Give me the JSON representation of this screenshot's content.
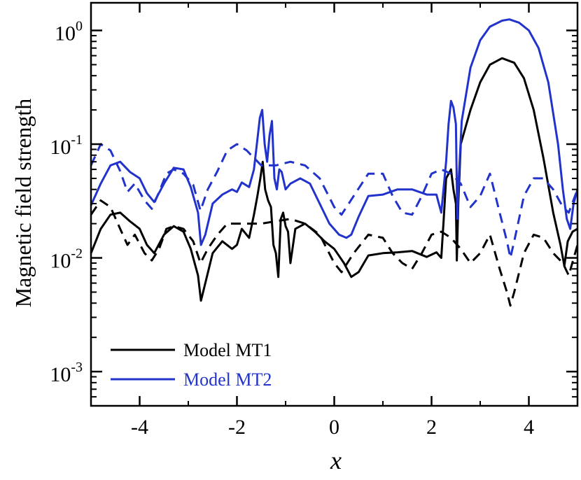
{
  "chart_data": {
    "type": "line",
    "title": "",
    "xlabel": "x",
    "ylabel": "Magnetic field strength",
    "xlim": [
      -5,
      5
    ],
    "ylim": [
      0.0005,
      1.75
    ],
    "yscale": "log",
    "x_ticks": [
      {
        "value": -4,
        "label": "-4"
      },
      {
        "value": -2,
        "label": "-2"
      },
      {
        "value": 0,
        "label": "0"
      },
      {
        "value": 2,
        "label": "2"
      },
      {
        "value": 4,
        "label": "4"
      }
    ],
    "y_ticks": [
      {
        "value": 0.001,
        "base": "10",
        "exp": "-3"
      },
      {
        "value": 0.01,
        "base": "10",
        "exp": "-2"
      },
      {
        "value": 0.1,
        "base": "10",
        "exp": "-1"
      },
      {
        "value": 1,
        "base": "10",
        "exp": "0"
      }
    ],
    "legend": [
      {
        "label": "Model MT1",
        "color": "#000000"
      },
      {
        "label": "Model MT2",
        "color": "#2233cc"
      }
    ],
    "series": [
      {
        "name": "Model MT1 (solid)",
        "color": "#000000",
        "dash": "solid",
        "x": [
          -5.0,
          -4.8,
          -4.6,
          -4.4,
          -4.2,
          -4.0,
          -3.85,
          -3.7,
          -3.5,
          -3.3,
          -3.1,
          -2.95,
          -2.8,
          -2.74,
          -2.65,
          -2.5,
          -2.3,
          -2.1,
          -2.0,
          -1.9,
          -1.75,
          -1.65,
          -1.58,
          -1.52,
          -1.47,
          -1.42,
          -1.36,
          -1.3,
          -1.25,
          -1.2,
          -1.15,
          -1.1,
          -1.05,
          -1.0,
          -0.95,
          -0.9,
          -0.8,
          -0.6,
          -0.4,
          -0.2,
          0.0,
          0.2,
          0.35,
          0.5,
          0.7,
          1.0,
          1.3,
          1.6,
          1.9,
          2.1,
          2.2,
          2.25,
          2.3,
          2.4,
          2.45,
          2.5,
          2.52,
          2.55,
          2.6,
          2.8,
          3.0,
          3.2,
          3.45,
          3.7,
          3.9,
          4.1,
          4.3,
          4.5,
          4.65,
          4.73,
          4.8,
          4.9,
          5.0
        ],
        "y": [
          0.011,
          0.018,
          0.024,
          0.025,
          0.021,
          0.018,
          0.013,
          0.011,
          0.016,
          0.019,
          0.017,
          0.012,
          0.007,
          0.0042,
          0.006,
          0.011,
          0.014,
          0.012,
          0.013,
          0.018,
          0.015,
          0.024,
          0.035,
          0.05,
          0.07,
          0.04,
          0.032,
          0.028,
          0.013,
          0.011,
          0.0068,
          0.022,
          0.025,
          0.019,
          0.017,
          0.009,
          0.018,
          0.02,
          0.017,
          0.014,
          0.012,
          0.009,
          0.0068,
          0.0075,
          0.0105,
          0.011,
          0.0112,
          0.0115,
          0.0102,
          0.0112,
          0.01,
          0.022,
          0.05,
          0.06,
          0.04,
          0.03,
          0.0095,
          0.03,
          0.1,
          0.2,
          0.35,
          0.5,
          0.57,
          0.52,
          0.38,
          0.2,
          0.075,
          0.025,
          0.013,
          0.0085,
          0.014,
          0.017,
          0.018
        ]
      },
      {
        "name": "Model MT1 (dashed)",
        "color": "#000000",
        "dash": "dashed",
        "x": [
          -5.0,
          -4.8,
          -4.6,
          -4.4,
          -4.25,
          -4.1,
          -3.9,
          -3.75,
          -3.6,
          -3.45,
          -3.3,
          -3.1,
          -2.9,
          -2.75,
          -2.6,
          -2.4,
          -2.2,
          -2.0,
          -1.8,
          -1.5,
          -1.2,
          -0.9,
          -0.6,
          -0.3,
          0.0,
          0.15,
          0.4,
          0.7,
          1.0,
          1.2,
          1.4,
          1.6,
          1.8,
          2.0,
          2.2,
          2.4,
          2.6,
          2.8,
          3.0,
          3.2,
          3.4,
          3.55,
          3.62,
          3.7,
          3.9,
          4.1,
          4.3,
          4.5,
          4.7,
          4.82,
          5.0
        ],
        "y": [
          0.024,
          0.032,
          0.028,
          0.018,
          0.013,
          0.016,
          0.011,
          0.0095,
          0.012,
          0.018,
          0.019,
          0.018,
          0.014,
          0.009,
          0.012,
          0.016,
          0.02,
          0.02,
          0.02,
          0.02,
          0.021,
          0.022,
          0.02,
          0.016,
          0.009,
          0.0075,
          0.011,
          0.016,
          0.015,
          0.011,
          0.009,
          0.008,
          0.011,
          0.016,
          0.017,
          0.015,
          0.012,
          0.009,
          0.011,
          0.016,
          0.008,
          0.005,
          0.0038,
          0.005,
          0.011,
          0.016,
          0.015,
          0.011,
          0.009,
          0.007,
          0.013
        ]
      },
      {
        "name": "Model MT2 (solid)",
        "color": "#2233cc",
        "dash": "solid",
        "x": [
          -5.0,
          -4.8,
          -4.6,
          -4.4,
          -4.2,
          -4.0,
          -3.85,
          -3.7,
          -3.5,
          -3.3,
          -3.1,
          -2.95,
          -2.8,
          -2.74,
          -2.65,
          -2.5,
          -2.3,
          -2.1,
          -2.0,
          -1.9,
          -1.75,
          -1.65,
          -1.58,
          -1.53,
          -1.48,
          -1.43,
          -1.38,
          -1.33,
          -1.28,
          -1.23,
          -1.18,
          -1.13,
          -1.08,
          -1.0,
          -0.9,
          -0.7,
          -0.5,
          -0.3,
          -0.1,
          0.1,
          0.25,
          0.35,
          0.5,
          0.7,
          1.0,
          1.3,
          1.6,
          1.9,
          2.1,
          2.15,
          2.2,
          2.25,
          2.3,
          2.35,
          2.4,
          2.45,
          2.5,
          2.53,
          2.56,
          2.62,
          2.8,
          3.0,
          3.2,
          3.45,
          3.6,
          3.8,
          4.0,
          4.2,
          4.4,
          4.6,
          4.7,
          4.78,
          4.85,
          4.92,
          5.0
        ],
        "y": [
          0.029,
          0.045,
          0.065,
          0.07,
          0.057,
          0.05,
          0.037,
          0.031,
          0.045,
          0.062,
          0.06,
          0.042,
          0.025,
          0.013,
          0.016,
          0.03,
          0.036,
          0.04,
          0.038,
          0.046,
          0.042,
          0.06,
          0.11,
          0.17,
          0.2,
          0.1,
          0.07,
          0.12,
          0.16,
          0.05,
          0.04,
          0.06,
          0.057,
          0.04,
          0.045,
          0.05,
          0.045,
          0.03,
          0.02,
          0.016,
          0.015,
          0.016,
          0.023,
          0.035,
          0.036,
          0.04,
          0.04,
          0.036,
          0.036,
          0.03,
          0.025,
          0.042,
          0.07,
          0.15,
          0.24,
          0.21,
          0.15,
          0.022,
          0.05,
          0.16,
          0.47,
          0.82,
          1.08,
          1.22,
          1.25,
          1.17,
          1.0,
          0.7,
          0.35,
          0.1,
          0.04,
          0.022,
          0.018,
          0.03,
          0.04
        ]
      },
      {
        "name": "Model MT2 (dashed)",
        "color": "#2233cc",
        "dash": "dashed",
        "x": [
          -5.0,
          -4.8,
          -4.6,
          -4.4,
          -4.25,
          -4.1,
          -3.9,
          -3.75,
          -3.6,
          -3.45,
          -3.3,
          -3.1,
          -2.9,
          -2.75,
          -2.6,
          -2.4,
          -2.2,
          -2.0,
          -1.8,
          -1.5,
          -1.2,
          -0.9,
          -0.6,
          -0.3,
          0.0,
          0.15,
          0.4,
          0.7,
          1.0,
          1.2,
          1.4,
          1.6,
          1.8,
          2.0,
          2.2,
          2.4,
          2.6,
          2.8,
          3.0,
          3.2,
          3.4,
          3.55,
          3.62,
          3.7,
          3.9,
          4.1,
          4.3,
          4.5,
          4.7,
          4.82,
          5.0
        ],
        "y": [
          0.065,
          0.1,
          0.088,
          0.058,
          0.038,
          0.045,
          0.032,
          0.027,
          0.038,
          0.055,
          0.06,
          0.055,
          0.044,
          0.026,
          0.04,
          0.058,
          0.088,
          0.1,
          0.088,
          0.065,
          0.065,
          0.07,
          0.065,
          0.05,
          0.028,
          0.024,
          0.035,
          0.055,
          0.055,
          0.035,
          0.025,
          0.024,
          0.035,
          0.055,
          0.06,
          0.055,
          0.045,
          0.028,
          0.035,
          0.055,
          0.025,
          0.014,
          0.01,
          0.014,
          0.035,
          0.05,
          0.05,
          0.04,
          0.028,
          0.025,
          0.04
        ]
      }
    ]
  }
}
